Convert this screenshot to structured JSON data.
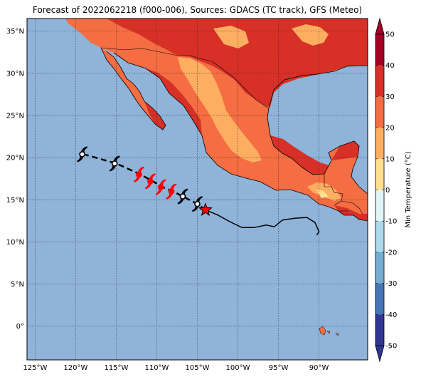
{
  "title": "Forecast of 2022062218 (f000-006), Sources: GDACS (TC track), GFS (Meteo)",
  "map": {
    "lon_range": [
      -126,
      -84
    ],
    "lat_range": [
      -4,
      36.5
    ],
    "lon_ticks": [
      {
        "value": -125,
        "label": "125°W"
      },
      {
        "value": -120,
        "label": "120°W"
      },
      {
        "value": -115,
        "label": "115°W"
      },
      {
        "value": -110,
        "label": "110°W"
      },
      {
        "value": -105,
        "label": "105°W"
      },
      {
        "value": -100,
        "label": "100°W"
      },
      {
        "value": -95,
        "label": "95°W"
      },
      {
        "value": -90,
        "label": "90°W"
      }
    ],
    "lat_ticks": [
      {
        "value": 35,
        "label": "35°N"
      },
      {
        "value": 30,
        "label": "30°N"
      },
      {
        "value": 25,
        "label": "25°N"
      },
      {
        "value": 20,
        "label": "20°N"
      },
      {
        "value": 15,
        "label": "15°N"
      },
      {
        "value": 10,
        "label": "10°N"
      },
      {
        "value": 5,
        "label": "5°N"
      },
      {
        "value": 0,
        "label": "0°"
      }
    ],
    "ocean_color": "#8fb3d9",
    "grid": true
  },
  "colorbar": {
    "label": "Min Temperature (°C)",
    "ticks": [
      50,
      40,
      30,
      20,
      10,
      0,
      -10,
      -20,
      -30,
      -40,
      -50
    ],
    "colors": [
      "#a50026",
      "#d73027",
      "#f46d43",
      "#fdae61",
      "#fee090",
      "#ffffbf",
      "#e0f3f8",
      "#abd9e9",
      "#74add1",
      "#4575b4",
      "#313695"
    ],
    "extend": "both"
  },
  "track": {
    "past": [
      [
        -104.0,
        13.8
      ],
      [
        -102.5,
        13.2
      ],
      [
        -101.0,
        12.4
      ],
      [
        -99.5,
        11.7
      ],
      [
        -98.0,
        11.7
      ],
      [
        -96.5,
        12.0
      ],
      [
        -95.5,
        11.8
      ],
      [
        -94.5,
        12.6
      ],
      [
        -93.0,
        12.8
      ],
      [
        -91.5,
        12.9
      ],
      [
        -90.5,
        12.3
      ],
      [
        -90.0,
        11.2
      ],
      [
        -90.3,
        10.8
      ]
    ],
    "forecast": [
      [
        -104.0,
        13.8
      ],
      [
        -105.0,
        14.5
      ],
      [
        -106.8,
        15.4
      ],
      [
        -108.0,
        16.0
      ],
      [
        -109.3,
        16.5
      ],
      [
        -110.5,
        17.2
      ],
      [
        -112.0,
        18.0
      ],
      [
        -115.0,
        19.3
      ],
      [
        -119.0,
        20.4
      ]
    ],
    "current_position": [
      -104.0,
      13.8
    ],
    "symbols": [
      {
        "lon": -105.0,
        "lat": 14.5,
        "category": "tropical-storm",
        "color": "#000000"
      },
      {
        "lon": -106.8,
        "lat": 15.4,
        "category": "tropical-storm",
        "color": "#000000"
      },
      {
        "lon": -108.2,
        "lat": 16.0,
        "category": "hurricane",
        "color": "#ff0000"
      },
      {
        "lon": -109.5,
        "lat": 16.5,
        "category": "hurricane",
        "color": "#ff0000"
      },
      {
        "lon": -110.8,
        "lat": 17.2,
        "category": "hurricane",
        "color": "#ff0000"
      },
      {
        "lon": -112.2,
        "lat": 18.0,
        "category": "hurricane",
        "color": "#ff0000"
      },
      {
        "lon": -115.2,
        "lat": 19.3,
        "category": "tropical-storm",
        "color": "#000000"
      },
      {
        "lon": -119.2,
        "lat": 20.4,
        "category": "tropical-storm",
        "color": "#000000"
      }
    ]
  }
}
